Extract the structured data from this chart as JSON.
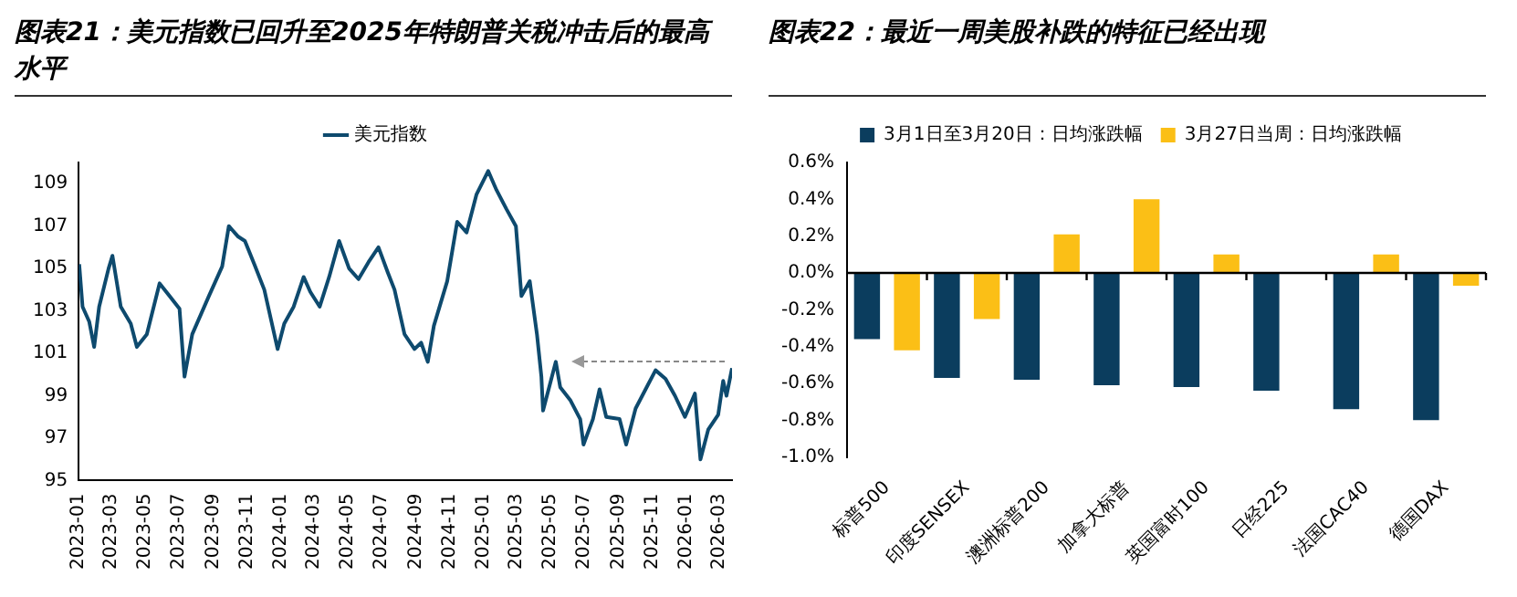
{
  "chart_data": [
    {
      "type": "line",
      "title": "图表21：美元指数已回升至2025年特朗普关税冲击后的最高水平",
      "legend": "top",
      "grid": false,
      "marker": "none",
      "line_style": "solid",
      "x": [
        "2023-01-02",
        "2023-01-08",
        "2023-01-20",
        "2023-01-29",
        "2023-02-07",
        "2023-02-24",
        "2023-03-03",
        "2023-03-18",
        "2023-04-05",
        "2023-04-16",
        "2023-05-04",
        "2023-05-27",
        "2023-06-14",
        "2023-07-02",
        "2023-07-11",
        "2023-07-25",
        "2023-08-24",
        "2023-09-17",
        "2023-09-29",
        "2023-10-16",
        "2023-10-28",
        "2023-11-14",
        "2023-12-02",
        "2023-12-14",
        "2023-12-26",
        "2024-01-07",
        "2024-01-24",
        "2024-02-11",
        "2024-02-23",
        "2024-03-11",
        "2024-03-28",
        "2024-04-15",
        "2024-05-03",
        "2024-05-20",
        "2024-06-07",
        "2024-06-25",
        "2024-07-12",
        "2024-07-24",
        "2024-08-11",
        "2024-08-29",
        "2024-09-10",
        "2024-09-22",
        "2024-10-03",
        "2024-10-27",
        "2024-11-14",
        "2024-12-01",
        "2024-12-19",
        "2025-01-09",
        "2025-01-24",
        "2025-02-11",
        "2025-02-28",
        "2025-03-10",
        "2025-03-25",
        "2025-04-07",
        "2025-04-15",
        "2025-04-18",
        "2025-05-02",
        "2025-05-11",
        "2025-05-19",
        "2025-06-06",
        "2025-06-24",
        "2025-06-30",
        "2025-07-17",
        "2025-07-29",
        "2025-08-10",
        "2025-09-03",
        "2025-09-15",
        "2025-10-02",
        "2025-10-20",
        "2025-11-07",
        "2025-11-25",
        "2025-12-12",
        "2025-12-30",
        "2026-01-17",
        "2026-01-27",
        "2026-02-10",
        "2026-02-28",
        "2026-03-09",
        "2026-03-15",
        "2026-03-25"
      ],
      "series": [
        {
          "name": "美元指数",
          "color": "#0e4a6e",
          "values": [
            105.2,
            103.2,
            102.5,
            101.3,
            103.2,
            105.0,
            105.6,
            103.2,
            102.4,
            101.3,
            101.9,
            104.3,
            103.7,
            103.1,
            99.9,
            101.9,
            103.7,
            105.1,
            107.0,
            106.5,
            106.3,
            105.2,
            104.0,
            102.6,
            101.2,
            102.4,
            103.2,
            104.6,
            103.9,
            103.2,
            104.6,
            106.3,
            105.0,
            104.5,
            105.3,
            106.0,
            104.8,
            104.0,
            101.9,
            101.2,
            101.5,
            100.6,
            102.3,
            104.4,
            107.2,
            106.7,
            108.5,
            109.6,
            108.7,
            107.8,
            107.0,
            103.7,
            104.4,
            101.9,
            99.9,
            98.3,
            99.7,
            100.6,
            99.4,
            98.8,
            97.9,
            96.7,
            97.9,
            99.3,
            98.0,
            97.9,
            96.7,
            98.4,
            99.3,
            100.2,
            99.8,
            99.0,
            98.0,
            99.1,
            96.0,
            97.4,
            98.1,
            99.7,
            99.0,
            100.3
          ]
        }
      ],
      "xlim": [
        "2023-01-01",
        "2026-03-25"
      ],
      "xticks": [
        "2023-01",
        "2023-03",
        "2023-05",
        "2023-07",
        "2023-09",
        "2023-11",
        "2024-01",
        "2024-03",
        "2024-05",
        "2024-07",
        "2024-09",
        "2024-11",
        "2025-01",
        "2025-03",
        "2025-05",
        "2025-07",
        "2025-09",
        "2025-11",
        "2026-01",
        "2026-03"
      ],
      "ylim": [
        95,
        110
      ],
      "yticks": [
        95,
        97,
        99,
        101,
        103,
        105,
        107,
        109
      ]
    },
    {
      "type": "bar",
      "title": "图表22：最近一周美股补跌的特征已经出现",
      "legend": "top",
      "grid": false,
      "categories": [
        "标普500",
        "印度SENSEX",
        "澳洲标普200",
        "加拿大标普",
        "英国富时100",
        "日经225",
        "法国CAC40",
        "德国DAX"
      ],
      "series": [
        {
          "name": "3月1日至3月20日：日均涨跌幅",
          "color": "#0b3d5e",
          "values": [
            -0.36,
            -0.57,
            -0.58,
            -0.61,
            -0.62,
            -0.64,
            -0.74,
            -0.8
          ]
        },
        {
          "name": "3月27日当周：日均涨跌幅",
          "color": "#fbbf16",
          "values": [
            -0.42,
            -0.25,
            0.21,
            0.4,
            0.1,
            null,
            0.1,
            -0.07
          ]
        }
      ],
      "ylim": [
        -1,
        0.6
      ],
      "yticks": [
        {
          "value": -1,
          "label": "-1.0%"
        },
        {
          "value": -0.8,
          "label": "-0.8%"
        },
        {
          "value": -0.6,
          "label": "-0.6%"
        },
        {
          "value": -0.4,
          "label": "-0.4%"
        },
        {
          "value": -0.2,
          "label": "-0.2%"
        },
        {
          "value": 0,
          "label": "0.0%"
        },
        {
          "value": 0.2,
          "label": "0.2%"
        },
        {
          "value": 0.4,
          "label": "0.4%"
        },
        {
          "value": 0.6,
          "label": "0.6%"
        }
      ],
      "ref_lines": [
        {
          "axis": "y",
          "value": 0,
          "color": "#000000"
        }
      ]
    }
  ]
}
